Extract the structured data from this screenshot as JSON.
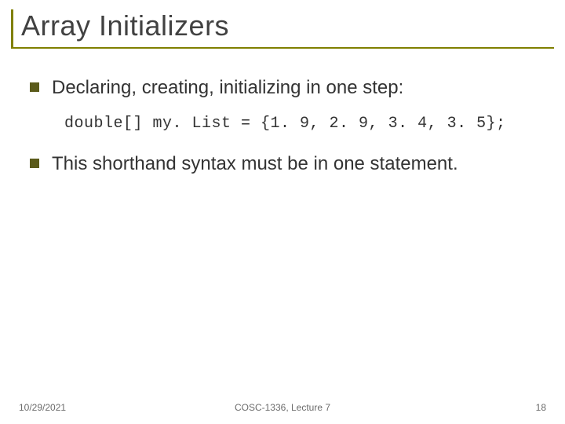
{
  "title": "Array Initializers",
  "bullets": [
    {
      "text": "Declaring, creating, initializing in one step:"
    },
    {
      "text": "This shorthand syntax must be in one statement."
    }
  ],
  "code": "double[] my. List = {1. 9, 2. 9, 3. 4, 3. 5};",
  "footer": {
    "date": "10/29/2021",
    "center": "COSC-1336, Lecture 7",
    "page": "18"
  },
  "colors": {
    "accent": "#808000",
    "bullet": "#5a5a1a",
    "text": "#333333",
    "title": "#414141",
    "footer": "#6b6b6b",
    "background": "#ffffff"
  },
  "fonts": {
    "title_size": 36,
    "body_size": 24,
    "code_size": 20,
    "footer_size": 12
  }
}
